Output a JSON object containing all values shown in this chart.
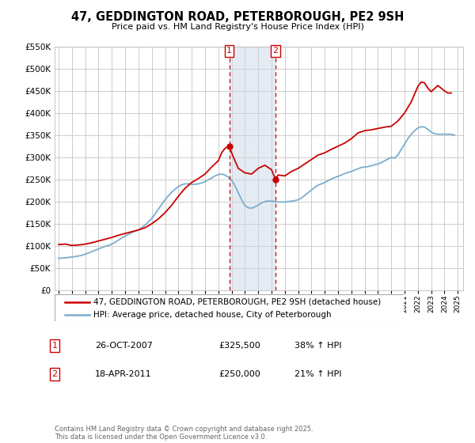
{
  "title": "47, GEDDINGTON ROAD, PETERBOROUGH, PE2 9SH",
  "subtitle": "Price paid vs. HM Land Registry's House Price Index (HPI)",
  "legend_line1": "47, GEDDINGTON ROAD, PETERBOROUGH, PE2 9SH (detached house)",
  "legend_line2": "HPI: Average price, detached house, City of Peterborough",
  "footer": "Contains HM Land Registry data © Crown copyright and database right 2025.\nThis data is licensed under the Open Government Licence v3.0.",
  "transaction1_date": "26-OCT-2007",
  "transaction1_price": "£325,500",
  "transaction1_hpi": "38% ↑ HPI",
  "transaction2_date": "18-APR-2011",
  "transaction2_price": "£250,000",
  "transaction2_hpi": "21% ↑ HPI",
  "vline1_x": 2007.82,
  "vline2_x": 2011.3,
  "marker1_x": 2007.82,
  "marker1_y": 325500,
  "marker2_x": 2011.3,
  "marker2_y": 250000,
  "price_color": "#cc0000",
  "hpi_color": "#7aadcf",
  "vline_color": "#cc0000",
  "shade_color": "#ccd9e8",
  "ylim": [
    0,
    550000
  ],
  "yticks": [
    0,
    50000,
    100000,
    150000,
    200000,
    250000,
    300000,
    350000,
    400000,
    450000,
    500000,
    550000
  ],
  "xlim_min": 1994.7,
  "xlim_max": 2025.4,
  "background_color": "#ffffff",
  "grid_color": "#cccccc",
  "hpi_data_years": [
    1995.0,
    1995.25,
    1995.5,
    1995.75,
    1996.0,
    1996.25,
    1996.5,
    1996.75,
    1997.0,
    1997.25,
    1997.5,
    1997.75,
    1998.0,
    1998.25,
    1998.5,
    1998.75,
    1999.0,
    1999.25,
    1999.5,
    1999.75,
    2000.0,
    2000.25,
    2000.5,
    2000.75,
    2001.0,
    2001.25,
    2001.5,
    2001.75,
    2002.0,
    2002.25,
    2002.5,
    2002.75,
    2003.0,
    2003.25,
    2003.5,
    2003.75,
    2004.0,
    2004.25,
    2004.5,
    2004.75,
    2005.0,
    2005.25,
    2005.5,
    2005.75,
    2006.0,
    2006.25,
    2006.5,
    2006.75,
    2007.0,
    2007.25,
    2007.5,
    2007.75,
    2008.0,
    2008.25,
    2008.5,
    2008.75,
    2009.0,
    2009.25,
    2009.5,
    2009.75,
    2010.0,
    2010.25,
    2010.5,
    2010.75,
    2011.0,
    2011.25,
    2011.5,
    2011.75,
    2012.0,
    2012.25,
    2012.5,
    2012.75,
    2013.0,
    2013.25,
    2013.5,
    2013.75,
    2014.0,
    2014.25,
    2014.5,
    2014.75,
    2015.0,
    2015.25,
    2015.5,
    2015.75,
    2016.0,
    2016.25,
    2016.5,
    2016.75,
    2017.0,
    2017.25,
    2017.5,
    2017.75,
    2018.0,
    2018.25,
    2018.5,
    2018.75,
    2019.0,
    2019.25,
    2019.5,
    2019.75,
    2020.0,
    2020.25,
    2020.5,
    2020.75,
    2021.0,
    2021.25,
    2021.5,
    2021.75,
    2022.0,
    2022.25,
    2022.5,
    2022.75,
    2023.0,
    2023.25,
    2023.5,
    2023.75,
    2024.0,
    2024.25,
    2024.5,
    2024.75
  ],
  "hpi_data_values": [
    72000,
    72500,
    73000,
    74000,
    75000,
    76000,
    77000,
    79000,
    81000,
    84000,
    87000,
    90000,
    93000,
    96000,
    99000,
    101000,
    104000,
    108000,
    113000,
    118000,
    122000,
    126000,
    130000,
    133000,
    136000,
    141000,
    147000,
    154000,
    162000,
    172000,
    183000,
    194000,
    204000,
    213000,
    221000,
    228000,
    234000,
    238000,
    240000,
    240000,
    239000,
    239000,
    240000,
    242000,
    245000,
    249000,
    253000,
    258000,
    261000,
    262000,
    260000,
    255000,
    248000,
    236000,
    220000,
    204000,
    191000,
    186000,
    185000,
    188000,
    192000,
    197000,
    200000,
    201000,
    201000,
    200000,
    199000,
    199000,
    199000,
    200000,
    201000,
    202000,
    204000,
    208000,
    214000,
    220000,
    226000,
    232000,
    237000,
    240000,
    243000,
    247000,
    251000,
    254000,
    257000,
    260000,
    263000,
    266000,
    268000,
    271000,
    274000,
    277000,
    278000,
    279000,
    281000,
    283000,
    285000,
    288000,
    292000,
    296000,
    300000,
    298000,
    305000,
    318000,
    330000,
    342000,
    352000,
    360000,
    366000,
    369000,
    368000,
    363000,
    357000,
    353000,
    352000,
    352000,
    352000,
    352000,
    352000,
    350000
  ],
  "price_data_years": [
    1995.0,
    1995.5,
    1996.0,
    1996.5,
    1997.0,
    1997.5,
    1998.0,
    1998.5,
    1999.0,
    1999.5,
    2000.0,
    2000.5,
    2001.0,
    2001.5,
    2002.0,
    2002.5,
    2003.0,
    2003.5,
    2004.0,
    2004.5,
    2005.0,
    2005.5,
    2006.0,
    2006.5,
    2007.0,
    2007.25,
    2007.5,
    2007.82,
    2008.0,
    2008.5,
    2009.0,
    2009.5,
    2010.0,
    2010.5,
    2011.0,
    2011.3,
    2011.5,
    2012.0,
    2012.5,
    2013.0,
    2013.5,
    2014.0,
    2014.5,
    2015.0,
    2015.5,
    2016.0,
    2016.5,
    2017.0,
    2017.5,
    2018.0,
    2018.5,
    2019.0,
    2019.5,
    2020.0,
    2020.5,
    2021.0,
    2021.5,
    2022.0,
    2022.25,
    2022.5,
    2022.75,
    2023.0,
    2023.25,
    2023.5,
    2023.75,
    2024.0,
    2024.25,
    2024.5
  ],
  "price_data_values": [
    103000,
    104000,
    101000,
    102000,
    104000,
    107000,
    111000,
    115000,
    119000,
    124000,
    128000,
    132000,
    136000,
    141000,
    150000,
    161000,
    175000,
    192000,
    212000,
    230000,
    243000,
    252000,
    262000,
    278000,
    292000,
    310000,
    320000,
    325500,
    310000,
    275000,
    265000,
    262000,
    275000,
    282000,
    272000,
    250000,
    260000,
    258000,
    268000,
    275000,
    285000,
    295000,
    305000,
    310000,
    318000,
    325000,
    332000,
    342000,
    355000,
    360000,
    362000,
    365000,
    368000,
    370000,
    382000,
    400000,
    425000,
    460000,
    470000,
    468000,
    456000,
    448000,
    455000,
    462000,
    456000,
    450000,
    445000,
    445000
  ]
}
